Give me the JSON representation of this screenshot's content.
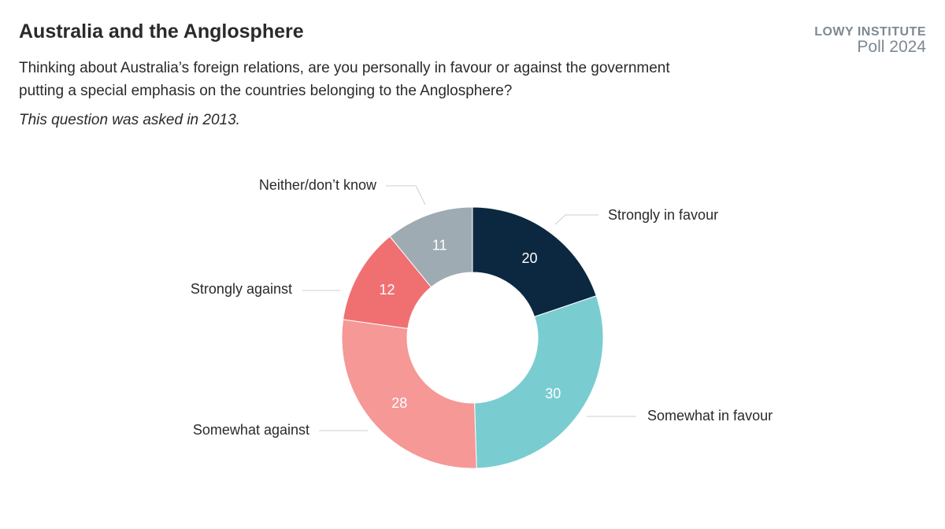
{
  "header": {
    "title": "Australia and the Anglosphere",
    "subtitle": "Thinking about Australia’s foreign relations, are you personally in favour or against the government putting a special emphasis on the countries belonging to the Anglosphere?",
    "note": "This question was asked in 2013."
  },
  "logo": {
    "line1": "LOWY INSTITUTE",
    "line2": "Poll 2024"
  },
  "chart_data": {
    "type": "pie",
    "donut": true,
    "categories": [
      "Strongly in favour",
      "Somewhat in favour",
      "Somewhat against",
      "Strongly against",
      "Neither/don’t know"
    ],
    "values": [
      20,
      30,
      28,
      12,
      11
    ],
    "colors": [
      "#0b2840",
      "#79cdd1",
      "#f59896",
      "#f07072",
      "#9eabb3"
    ],
    "label_colors": [
      "#ffffff",
      "#ffffff",
      "#ffffff",
      "#ffffff",
      "#ffffff"
    ]
  }
}
